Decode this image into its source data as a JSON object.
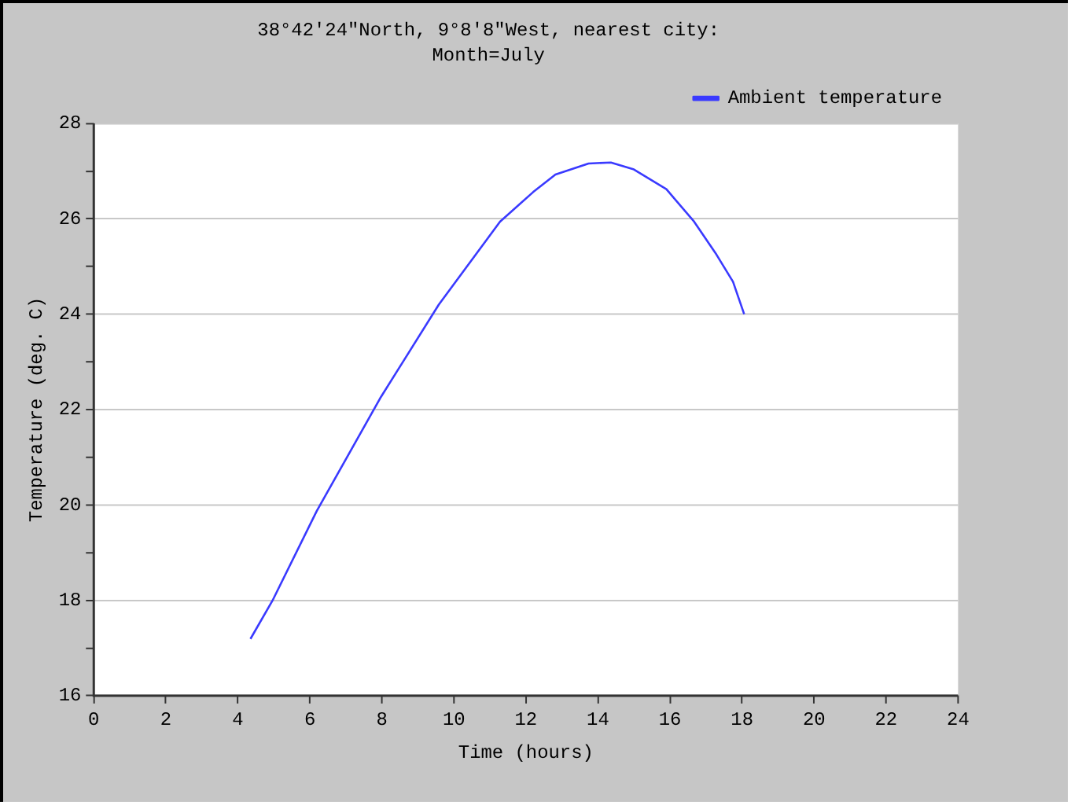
{
  "chart_data": {
    "type": "line",
    "title": "38°42′24\"North, 9°8′8\"West, nearest city:",
    "subtitle": "Month=July",
    "xlabel": "Time (hours)",
    "ylabel": "Temperature (deg. C)",
    "xlim": [
      0,
      24
    ],
    "xticks": [
      0,
      2,
      4,
      6,
      8,
      10,
      12,
      14,
      16,
      18,
      20,
      22,
      24
    ],
    "ylim": [
      16,
      28
    ],
    "yticks": [
      16,
      {
        "value": 17,
        "label": null
      },
      18,
      {
        "value": 19,
        "label": null
      },
      20,
      {
        "value": 21,
        "label": null
      },
      22,
      {
        "value": 23,
        "label": null
      },
      24,
      {
        "value": 25,
        "label": null
      },
      26,
      {
        "value": 27,
        "label": null
      },
      28
    ],
    "grid": "y",
    "legend": "top right",
    "series": [
      {
        "name": "Ambient temperature",
        "color": "#3a3aff",
        "x": [
          4.35,
          4.96,
          6.19,
          7.97,
          9.58,
          11.28,
          12.2,
          12.82,
          13.74,
          14.36,
          14.98,
          15.9,
          16.67,
          17.29,
          17.75,
          18.06
        ],
        "values": [
          17.19,
          17.99,
          19.87,
          22.26,
          24.2,
          25.94,
          26.56,
          26.93,
          27.16,
          27.18,
          27.04,
          26.62,
          25.94,
          25.25,
          24.68,
          24.0
        ]
      }
    ]
  }
}
